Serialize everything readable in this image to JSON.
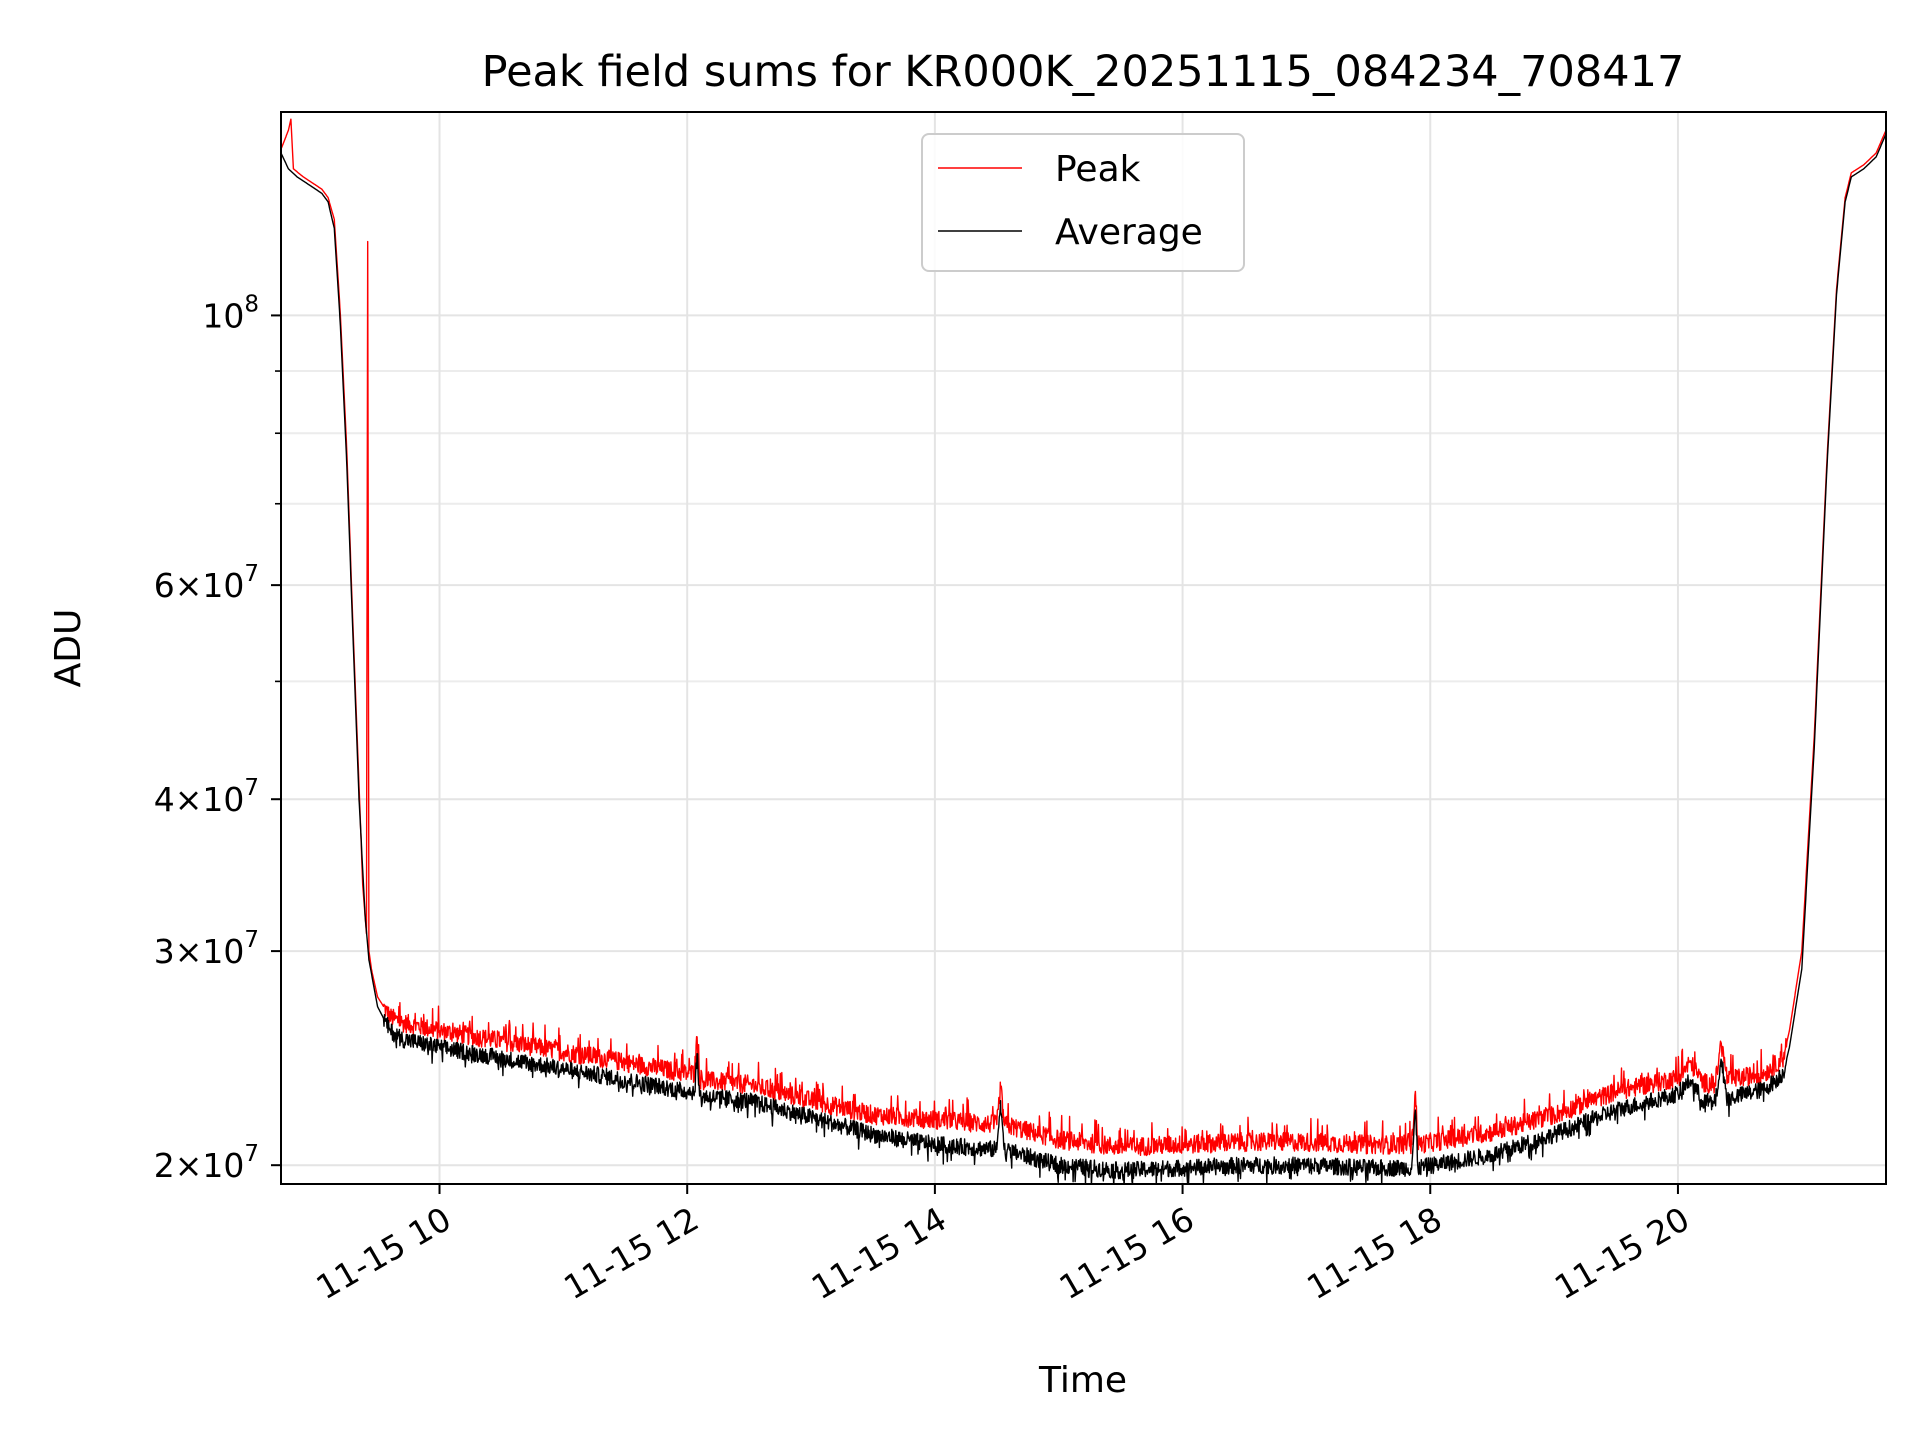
{
  "chart_data": {
    "type": "line",
    "title": "Peak field sums for KR000K_20251115_084234_708417",
    "xlabel": "Time",
    "ylabel": "ADU",
    "yscale": "log",
    "ylim": [
      19300000,
      147000000
    ],
    "xlim": [
      8.72,
      21.68
    ],
    "x_unit": "hours on 2025-11-15",
    "x_ticks": [
      {
        "value": 10,
        "label": "11-15 10"
      },
      {
        "value": 12,
        "label": "11-15 12"
      },
      {
        "value": 14,
        "label": "11-15 14"
      },
      {
        "value": 16,
        "label": "11-15 16"
      },
      {
        "value": 18,
        "label": "11-15 18"
      },
      {
        "value": 20,
        "label": "11-15 20"
      }
    ],
    "y_ticks": [
      {
        "value": 20000000,
        "mant": "2",
        "exp": "7"
      },
      {
        "value": 30000000,
        "mant": "3",
        "exp": "7"
      },
      {
        "value": 40000000,
        "mant": "4",
        "exp": "7"
      },
      {
        "value": 60000000,
        "mant": "6",
        "exp": "7"
      },
      {
        "value": 100000000,
        "mant": "",
        "exp": "8"
      }
    ],
    "y_minor_ticks": [
      50000000,
      70000000,
      80000000,
      90000000
    ],
    "grid": true,
    "legend_position": "top-center",
    "series": [
      {
        "name": "Peak",
        "color": "#ff0000",
        "points": [
          [
            8.72,
            137000000
          ],
          [
            8.78,
            142000000
          ],
          [
            8.8,
            145000000
          ],
          [
            8.82,
            132000000
          ],
          [
            8.9,
            130000000
          ],
          [
            9.0,
            128000000
          ],
          [
            9.05,
            127000000
          ],
          [
            9.1,
            125000000
          ],
          [
            9.15,
            120000000
          ],
          [
            9.2,
            100000000
          ],
          [
            9.25,
            78000000
          ],
          [
            9.3,
            56000000
          ],
          [
            9.35,
            41000000
          ],
          [
            9.38,
            34000000
          ],
          [
            9.41,
            31000000
          ],
          [
            9.42,
            115000000
          ],
          [
            9.43,
            30000000
          ],
          [
            9.45,
            29000000
          ],
          [
            9.5,
            27500000
          ],
          [
            9.6,
            26500000
          ],
          [
            9.7,
            26200000
          ],
          [
            10.0,
            25800000
          ],
          [
            10.5,
            25300000
          ],
          [
            11.0,
            24800000
          ],
          [
            11.5,
            24300000
          ],
          [
            12.0,
            23800000
          ],
          [
            12.06,
            23800000
          ],
          [
            12.08,
            25500000
          ],
          [
            12.1,
            23500000
          ],
          [
            12.5,
            23300000
          ],
          [
            13.0,
            22600000
          ],
          [
            13.5,
            22000000
          ],
          [
            14.0,
            21800000
          ],
          [
            14.5,
            21600000
          ],
          [
            14.53,
            23200000
          ],
          [
            14.56,
            21600000
          ],
          [
            15.0,
            21000000
          ],
          [
            15.5,
            20700000
          ],
          [
            16.0,
            20800000
          ],
          [
            16.5,
            20900000
          ],
          [
            17.0,
            20900000
          ],
          [
            17.5,
            20800000
          ],
          [
            17.85,
            20800000
          ],
          [
            17.88,
            23000000
          ],
          [
            17.9,
            20800000
          ],
          [
            18.5,
            21300000
          ],
          [
            19.0,
            22000000
          ],
          [
            19.5,
            23000000
          ],
          [
            20.0,
            23600000
          ],
          [
            20.1,
            24300000
          ],
          [
            20.2,
            23400000
          ],
          [
            20.3,
            23300000
          ],
          [
            20.35,
            25200000
          ],
          [
            20.4,
            23500000
          ],
          [
            20.7,
            23800000
          ],
          [
            20.85,
            24500000
          ],
          [
            20.9,
            25800000
          ],
          [
            21.0,
            30000000
          ],
          [
            21.1,
            45000000
          ],
          [
            21.2,
            75000000
          ],
          [
            21.28,
            105000000
          ],
          [
            21.35,
            125000000
          ],
          [
            21.4,
            131000000
          ],
          [
            21.5,
            133000000
          ],
          [
            21.6,
            136000000
          ],
          [
            21.68,
            142000000
          ]
        ]
      },
      {
        "name": "Average",
        "color": "#000000",
        "points": [
          [
            8.72,
            136000000
          ],
          [
            8.78,
            132000000
          ],
          [
            8.85,
            130000000
          ],
          [
            8.95,
            128000000
          ],
          [
            9.05,
            126000000
          ],
          [
            9.1,
            124000000
          ],
          [
            9.15,
            118000000
          ],
          [
            9.2,
            98000000
          ],
          [
            9.25,
            76000000
          ],
          [
            9.3,
            55000000
          ],
          [
            9.35,
            40000000
          ],
          [
            9.4,
            32000000
          ],
          [
            9.43,
            29500000
          ],
          [
            9.5,
            27000000
          ],
          [
            9.6,
            25800000
          ],
          [
            9.7,
            25400000
          ],
          [
            10.0,
            25000000
          ],
          [
            10.5,
            24500000
          ],
          [
            11.0,
            24000000
          ],
          [
            11.5,
            23500000
          ],
          [
            12.0,
            23000000
          ],
          [
            12.06,
            23000000
          ],
          [
            12.08,
            24700000
          ],
          [
            12.1,
            22800000
          ],
          [
            12.5,
            22600000
          ],
          [
            13.0,
            21900000
          ],
          [
            13.5,
            21200000
          ],
          [
            14.0,
            20800000
          ],
          [
            14.5,
            20600000
          ],
          [
            14.53,
            22600000
          ],
          [
            14.56,
            20600000
          ],
          [
            15.0,
            20000000
          ],
          [
            15.5,
            19800000
          ],
          [
            16.0,
            19900000
          ],
          [
            16.5,
            20000000
          ],
          [
            17.0,
            20000000
          ],
          [
            17.5,
            19900000
          ],
          [
            17.85,
            19900000
          ],
          [
            17.88,
            22200000
          ],
          [
            17.9,
            19900000
          ],
          [
            18.5,
            20400000
          ],
          [
            19.0,
            21200000
          ],
          [
            19.5,
            22200000
          ],
          [
            20.0,
            22900000
          ],
          [
            20.1,
            23500000
          ],
          [
            20.2,
            22600000
          ],
          [
            20.3,
            22500000
          ],
          [
            20.35,
            24400000
          ],
          [
            20.4,
            22700000
          ],
          [
            20.7,
            23100000
          ],
          [
            20.85,
            23800000
          ],
          [
            20.9,
            25000000
          ],
          [
            21.0,
            29000000
          ],
          [
            21.1,
            44000000
          ],
          [
            21.2,
            74000000
          ],
          [
            21.28,
            104000000
          ],
          [
            21.35,
            124000000
          ],
          [
            21.4,
            130000000
          ],
          [
            21.5,
            132000000
          ],
          [
            21.6,
            135000000
          ],
          [
            21.68,
            141000000
          ]
        ]
      }
    ]
  }
}
